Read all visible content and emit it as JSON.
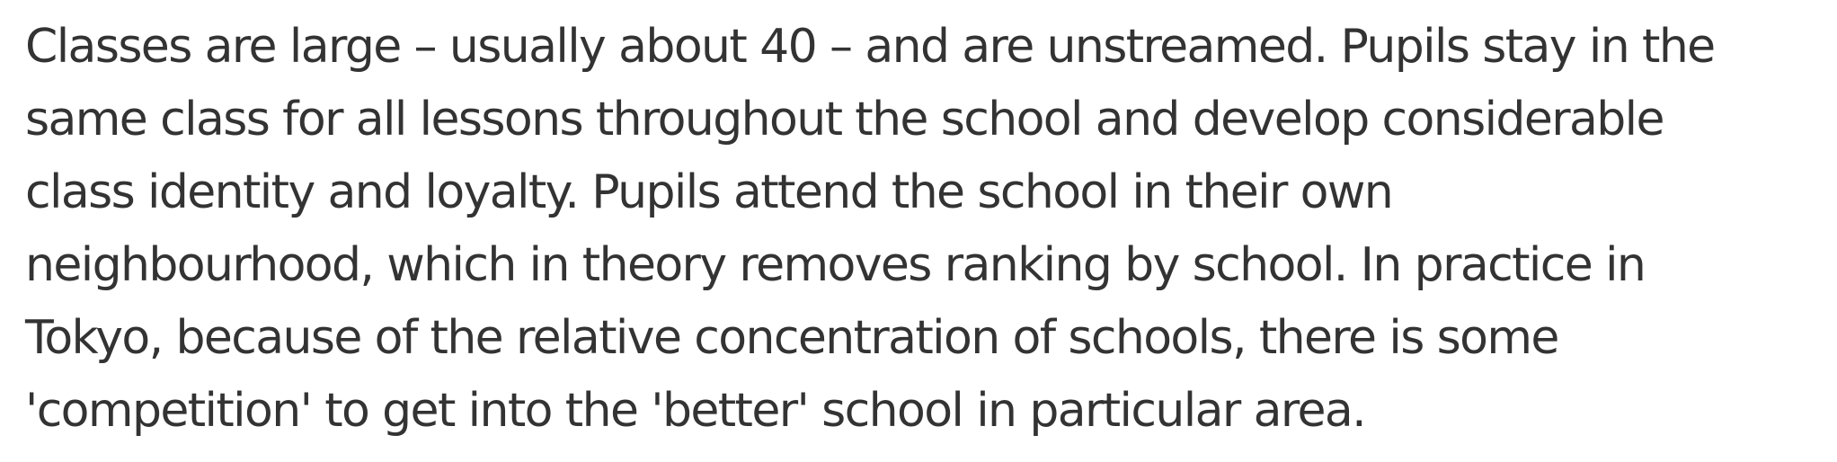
{
  "paragraph": {
    "lines": [
      "Classes are large – usually about 40 – and are unstreamed. Pupils stay in the",
      "same class for all lessons throughout the school and develop considerable",
      "class identity and loyalty. Pupils attend the school in their own",
      "neighbourhood, which in theory removes ranking by school. In practice in",
      "Tokyo, because of the relative concentration of schools, there is some",
      "'competition' to get into the 'better' school in particular area."
    ]
  }
}
